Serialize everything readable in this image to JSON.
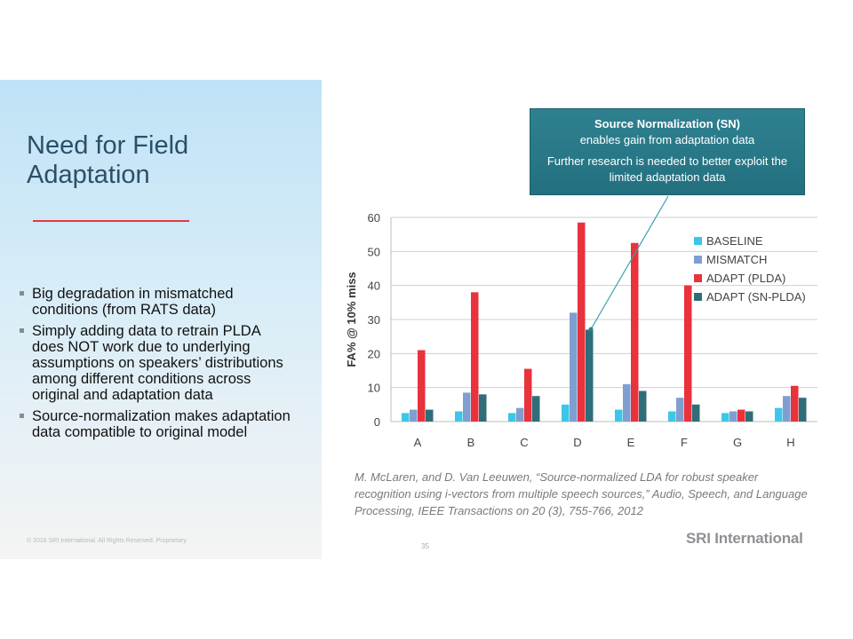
{
  "slide": {
    "title": "Need for Field Adaptation",
    "bullets": [
      "Big degradation in mismatched conditions (from RATS data)",
      "Simply adding data to retrain PLDA does NOT work due to underlying assumptions on speakers’ distributions among different conditions across original and adaptation data",
      "Source-normalization makes adaptation data compatible to original model"
    ],
    "footer": "© 2016 SRI International. All Rights Reserved. Proprietary",
    "page_number": "35",
    "logo": "SRI International"
  },
  "callout": {
    "title": "Source Normalization (SN)",
    "line1": "enables gain from adaptation data",
    "line2": "Further research is needed to better exploit the limited adaptation data"
  },
  "citation": "M. McLaren, and D. Van Leeuwen, “Source-normalized LDA for robust speaker recognition using i-vectors from multiple speech sources,” Audio, Speech, and Language Processing, IEEE Transactions on 20 (3), 755-766, 2012",
  "colors": {
    "baseline": "#3ec6e8",
    "mismatch": "#7f9fd0",
    "adapt_plda": "#e8323c",
    "adapt_sn_plda": "#2e6e78"
  },
  "chart_data": {
    "type": "bar",
    "categories": [
      "A",
      "B",
      "C",
      "D",
      "E",
      "F",
      "G",
      "H"
    ],
    "series": [
      {
        "name": "BASELINE",
        "values": [
          2.5,
          3,
          2.5,
          5,
          3.5,
          3,
          2.5,
          4
        ],
        "color": "#3ec6e8"
      },
      {
        "name": "MISMATCH",
        "values": [
          3.5,
          8.5,
          4,
          32,
          11,
          7,
          3,
          7.5
        ],
        "color": "#7f9fd0"
      },
      {
        "name": "ADAPT (PLDA)",
        "values": [
          21,
          38,
          15.5,
          58.5,
          52.5,
          40,
          3.5,
          10.5
        ],
        "color": "#e8323c"
      },
      {
        "name": "ADAPT (SN-PLDA)",
        "values": [
          3.5,
          8,
          7.5,
          27,
          9,
          5,
          3,
          7
        ],
        "color": "#2e6e78"
      }
    ],
    "ylabel": "FA% @ 10% miss",
    "ylim": [
      0,
      60
    ],
    "yticks": [
      0,
      10,
      20,
      30,
      40,
      50,
      60
    ],
    "grid": true,
    "legend": "top-right"
  }
}
